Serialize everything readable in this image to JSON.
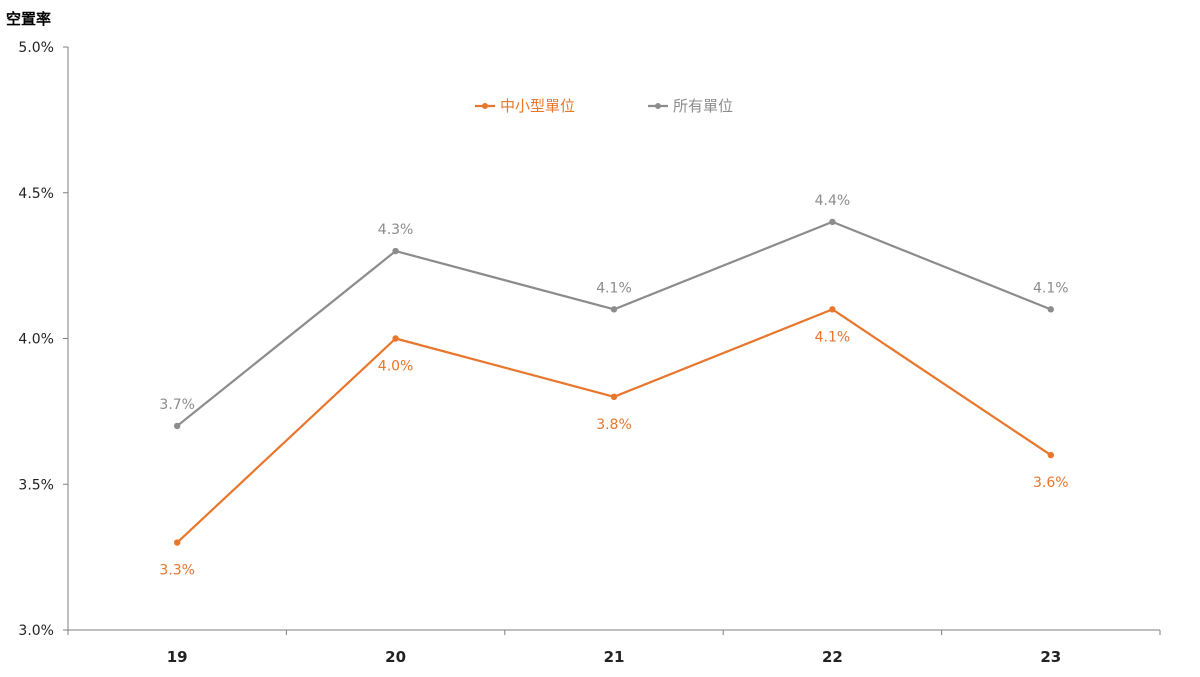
{
  "chart_data": {
    "type": "line",
    "title": "",
    "xlabel": "",
    "ylabel": "空置率",
    "x": [
      "19",
      "20",
      "21",
      "22",
      "23"
    ],
    "ylim": [
      3.0,
      5.0
    ],
    "yticks": [
      3.0,
      3.5,
      4.0,
      4.5,
      5.0
    ],
    "ytick_labels": [
      "3.0%",
      "3.5%",
      "4.0%",
      "4.5%",
      "5.0%"
    ],
    "grid": false,
    "legend_position": "top-center",
    "series": [
      {
        "name": "中小型單位",
        "color": "#E8762C",
        "values": [
          3.3,
          4.0,
          3.8,
          4.1,
          3.6
        ],
        "labels": [
          "3.3%",
          "4.0%",
          "3.8%",
          "4.1%",
          "3.6%"
        ],
        "label_position": "below"
      },
      {
        "name": "所有單位",
        "color": "#8C8C8C",
        "values": [
          3.7,
          4.3,
          4.1,
          4.4,
          4.1
        ],
        "labels": [
          "3.7%",
          "4.3%",
          "4.1%",
          "4.4%",
          "4.1%"
        ],
        "label_position": "above"
      }
    ]
  }
}
